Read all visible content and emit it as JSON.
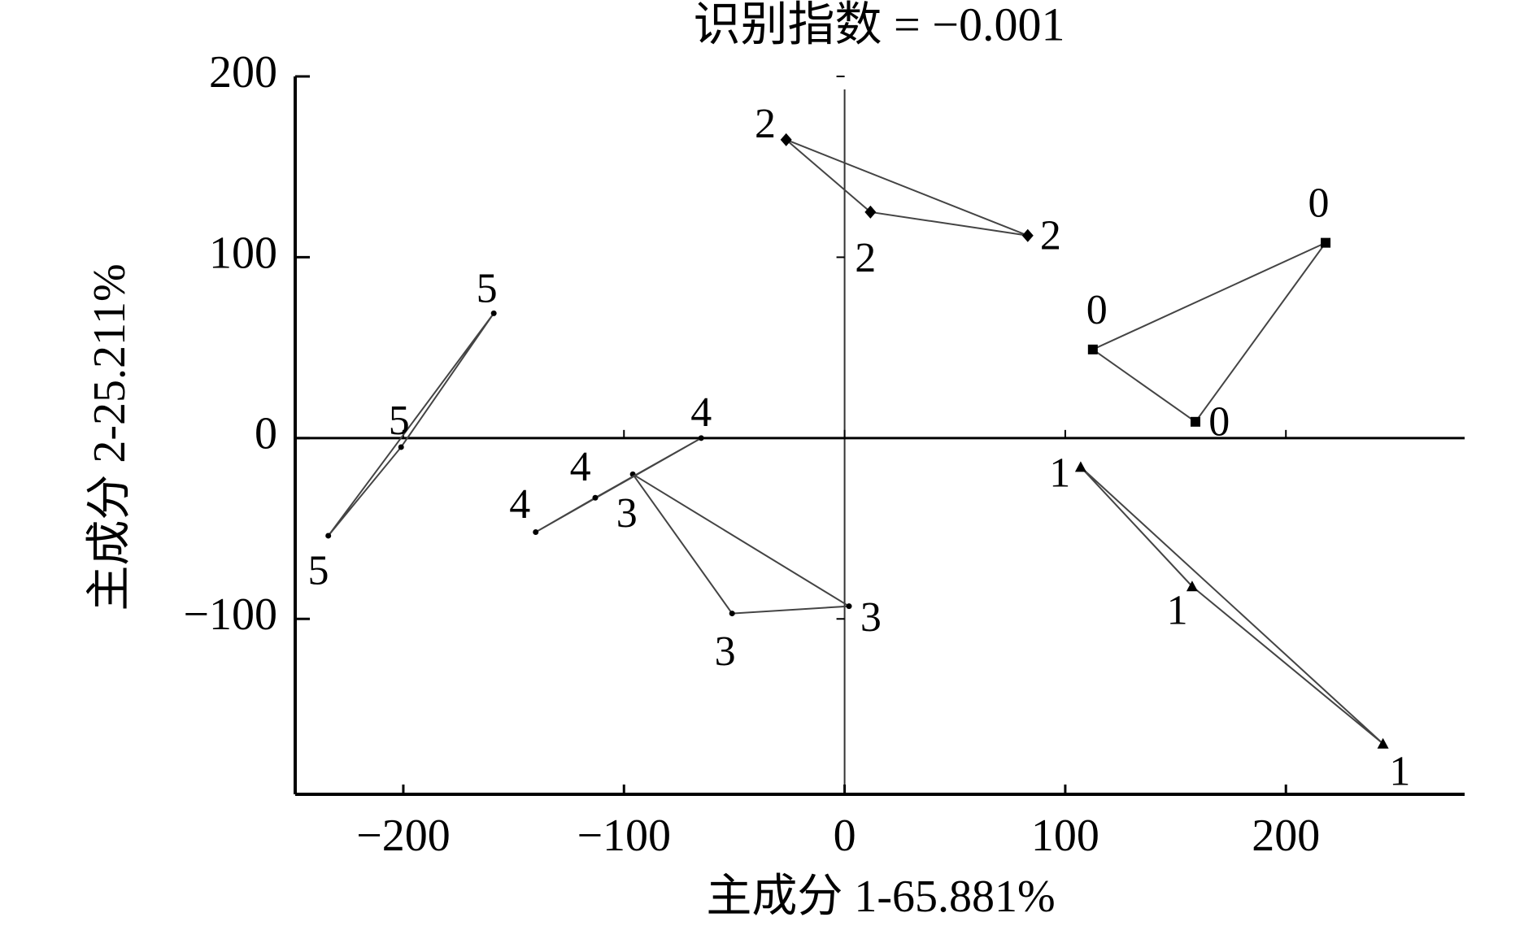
{
  "chart_data": {
    "type": "scatter",
    "title": "识别指数 = −0.001",
    "x_label": "主成分 1-65.881%",
    "y_label": "主成分 2-25.211%",
    "xlim": [
      -249,
      281
    ],
    "ylim": [
      -197,
      200
    ],
    "xticks": [
      {
        "value": -200,
        "label": "−200"
      },
      {
        "value": -100,
        "label": "−100"
      },
      0,
      100,
      200
    ],
    "yticks": [
      {
        "value": -100,
        "label": "−100"
      },
      0,
      100,
      200
    ],
    "series": [
      {
        "name": "0",
        "color": "#000000",
        "marker": "square",
        "x": [
          218,
          112.5,
          159
        ],
        "values": [
          108,
          49,
          9
        ]
      },
      {
        "name": "1",
        "color": "#000000",
        "marker": "triangle",
        "x": [
          107,
          157.5,
          244
        ],
        "values": [
          -16,
          -82,
          -169
        ]
      },
      {
        "name": "2",
        "color": "#000000",
        "marker": "diamond",
        "x": [
          -26.5,
          11.7,
          83
        ],
        "values": [
          165,
          125,
          112
        ]
      },
      {
        "name": "3",
        "color": "#000000",
        "marker": "dot",
        "x": [
          -96,
          -51,
          2
        ],
        "values": [
          -20,
          -97,
          -93
        ]
      },
      {
        "name": "4",
        "color": "#000000",
        "marker": "dot",
        "x": [
          -65,
          -113,
          -140
        ],
        "values": [
          0,
          -33,
          -52
        ]
      },
      {
        "name": "5",
        "color": "#000000",
        "marker": "dot",
        "x": [
          -159,
          -201,
          -234
        ],
        "values": [
          69,
          -5,
          -54
        ]
      }
    ]
  }
}
